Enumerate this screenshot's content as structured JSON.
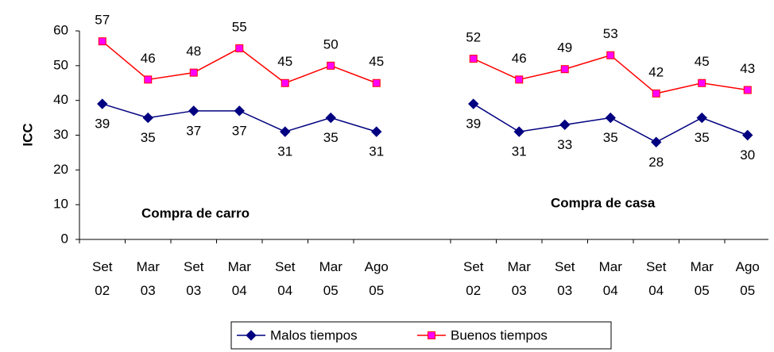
{
  "chart_data": {
    "type": "line",
    "ylabel": "ICC",
    "ylim": [
      0,
      60
    ],
    "yticks": [
      0,
      10,
      20,
      30,
      40,
      50,
      60
    ],
    "series": [
      {
        "name": "Malos tiempos",
        "color": "#000080",
        "marker": "diamond"
      },
      {
        "name": "Buenos tiempos",
        "color": "#ff0000",
        "marker": "square",
        "marker_color": "#ff00ff"
      }
    ],
    "panels": [
      {
        "annotation": "Compra de carro",
        "categories": [
          "Set 02",
          "Mar 03",
          "Set 03",
          "Mar 04",
          "Set 04",
          "Mar 05",
          "Ago 05"
        ],
        "series": [
          {
            "values": [
              39,
              35,
              37,
              37,
              31,
              35,
              31
            ]
          },
          {
            "values": [
              57,
              46,
              48,
              55,
              45,
              50,
              45
            ]
          }
        ]
      },
      {
        "annotation": "Compra de casa",
        "categories": [
          "Set 02",
          "Mar 03",
          "Set 03",
          "Mar 04",
          "Set 04",
          "Mar 05",
          "Ago 05"
        ],
        "series": [
          {
            "values": [
              39,
              31,
              33,
              35,
              28,
              35,
              30
            ]
          },
          {
            "values": [
              52,
              46,
              49,
              53,
              42,
              45,
              43
            ]
          }
        ]
      }
    ]
  }
}
